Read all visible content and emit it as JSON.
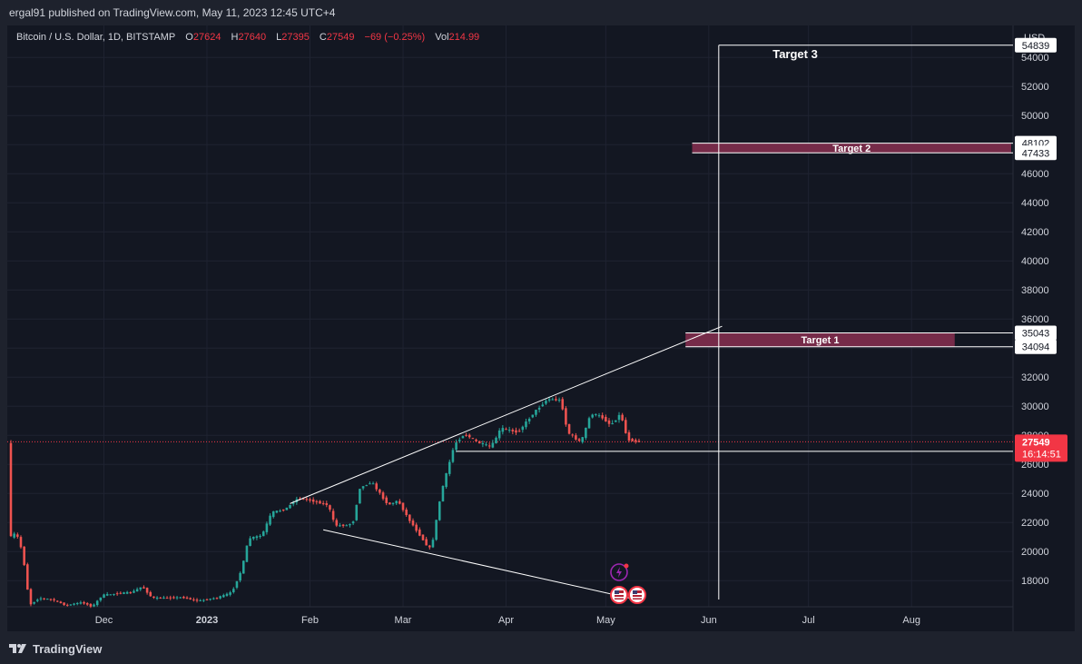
{
  "header": {
    "published_by": "ergal91 published on TradingView.com, May 11, 2023 12:45 UTC+4"
  },
  "legend": {
    "symbol": "Bitcoin / U.S. Dollar, 1D, BITSTAMP",
    "open_label": "O",
    "open": "27624",
    "high_label": "H",
    "high": "27640",
    "low_label": "L",
    "low": "27395",
    "close_label": "C",
    "close": "27549",
    "change": "−69 (−0.25%)",
    "volume_label": "Vol",
    "volume": "214.99"
  },
  "footer": {
    "brand": "TradingView"
  },
  "colors": {
    "up": "#26a69a",
    "down": "#ef5350",
    "target_zone": "#7b2c4c",
    "price_badge": "#f23645"
  },
  "chart_data": {
    "type": "candlestick",
    "currency_label": "USD",
    "ylim": [
      16200,
      56200
    ],
    "y_ticks": [
      18000,
      20000,
      22000,
      24000,
      26000,
      28000,
      30000,
      32000,
      34000,
      36000,
      38000,
      40000,
      42000,
      44000,
      46000,
      48000,
      50000,
      52000,
      54000
    ],
    "x_range": [
      "2022-11-03",
      "2023-08-31"
    ],
    "x_ticks": [
      {
        "date": "2022-12-01",
        "label": "Dec",
        "bold": false
      },
      {
        "date": "2023-01-01",
        "label": "2023",
        "bold": true
      },
      {
        "date": "2023-02-01",
        "label": "Feb",
        "bold": false
      },
      {
        "date": "2023-03-01",
        "label": "Mar",
        "bold": false
      },
      {
        "date": "2023-04-01",
        "label": "Apr",
        "bold": false
      },
      {
        "date": "2023-05-01",
        "label": "May",
        "bold": false
      },
      {
        "date": "2023-06-01",
        "label": "Jun",
        "bold": false
      },
      {
        "date": "2023-07-01",
        "label": "Jul",
        "bold": false
      },
      {
        "date": "2023-08-01",
        "label": "Aug",
        "bold": false
      }
    ],
    "price_path": [
      [
        "2022-11-03",
        20700
      ],
      [
        "2022-11-04",
        21300
      ],
      [
        "2022-11-06",
        20900
      ],
      [
        "2022-11-08",
        18500
      ],
      [
        "2022-11-09",
        16300
      ],
      [
        "2022-11-12",
        16800
      ],
      [
        "2022-11-16",
        16700
      ],
      [
        "2022-11-20",
        16300
      ],
      [
        "2022-11-25",
        16500
      ],
      [
        "2022-11-28",
        16200
      ],
      [
        "2022-12-01",
        17000
      ],
      [
        "2022-12-05",
        17100
      ],
      [
        "2022-12-10",
        17200
      ],
      [
        "2022-12-13",
        17600
      ],
      [
        "2022-12-16",
        16800
      ],
      [
        "2022-12-20",
        16800
      ],
      [
        "2022-12-25",
        16850
      ],
      [
        "2022-12-30",
        16600
      ],
      [
        "2023-01-05",
        16850
      ],
      [
        "2023-01-09",
        17200
      ],
      [
        "2023-01-12",
        18800
      ],
      [
        "2023-01-14",
        20900
      ],
      [
        "2023-01-18",
        21100
      ],
      [
        "2023-01-21",
        22700
      ],
      [
        "2023-01-25",
        22900
      ],
      [
        "2023-01-29",
        23700
      ],
      [
        "2023-02-02",
        23500
      ],
      [
        "2023-02-07",
        23200
      ],
      [
        "2023-02-09",
        21800
      ],
      [
        "2023-02-13",
        21800
      ],
      [
        "2023-02-15",
        22200
      ],
      [
        "2023-02-16",
        24300
      ],
      [
        "2023-02-20",
        24800
      ],
      [
        "2023-02-25",
        23200
      ],
      [
        "2023-02-28",
        23500
      ],
      [
        "2023-03-03",
        22300
      ],
      [
        "2023-03-09",
        20300
      ],
      [
        "2023-03-10",
        20200
      ],
      [
        "2023-03-13",
        24100
      ],
      [
        "2023-03-17",
        27400
      ],
      [
        "2023-03-20",
        28100
      ],
      [
        "2023-03-24",
        27500
      ],
      [
        "2023-03-28",
        27200
      ],
      [
        "2023-03-31",
        28500
      ],
      [
        "2023-04-05",
        28200
      ],
      [
        "2023-04-10",
        29600
      ],
      [
        "2023-04-14",
        30500
      ],
      [
        "2023-04-18",
        30400
      ],
      [
        "2023-04-20",
        28200
      ],
      [
        "2023-04-24",
        27500
      ],
      [
        "2023-04-27",
        29500
      ],
      [
        "2023-04-30",
        29300
      ],
      [
        "2023-05-03",
        28700
      ],
      [
        "2023-05-06",
        29500
      ],
      [
        "2023-05-08",
        27700
      ],
      [
        "2023-05-10",
        27624
      ],
      [
        "2023-05-11",
        27549
      ]
    ],
    "trendlines": [
      {
        "name": "upper-trendline",
        "from": [
          "2023-01-26",
          23300
        ],
        "to": [
          "2023-06-05",
          35500
        ]
      },
      {
        "name": "lower-trendline",
        "from": [
          "2023-02-05",
          21500
        ],
        "to": [
          "2023-05-12",
          16600
        ]
      },
      {
        "name": "support-line",
        "from": [
          "2023-03-17",
          26898
        ],
        "to": [
          "2023-08-31",
          26898
        ]
      },
      {
        "name": "target-3-horizontal",
        "from": [
          "2023-06-04",
          54839
        ],
        "to": [
          "2023-08-31",
          54839
        ]
      },
      {
        "name": "target-vertical",
        "from": [
          "2023-06-04",
          54839
        ],
        "to": [
          "2023-06-04",
          16700
        ]
      }
    ],
    "zones": [
      {
        "label": "Target 1",
        "from": "2023-05-25",
        "to": "2023-08-14",
        "low": 34094,
        "high": 35043
      },
      {
        "label": "Target 2",
        "from": "2023-05-27",
        "to": "2023-08-31",
        "low": 47433,
        "high": 48102
      }
    ],
    "text_annotations": [
      {
        "label": "Target 3",
        "date": "2023-06-27",
        "price": 54839
      }
    ],
    "price_labels": [
      {
        "value": "54839",
        "price": 54839
      },
      {
        "value": "48102",
        "price": 48102
      },
      {
        "value": "47433",
        "price": 47433
      },
      {
        "value": "35043",
        "price": 35043
      },
      {
        "value": "34094",
        "price": 34094
      },
      {
        "value": "26898",
        "price": 26898
      }
    ],
    "last_price": {
      "value": "27549",
      "countdown": "16:14:51",
      "price": 27549
    },
    "event_icons": [
      "flash-icon",
      "us-flag-icon",
      "us-flag-icon"
    ]
  }
}
